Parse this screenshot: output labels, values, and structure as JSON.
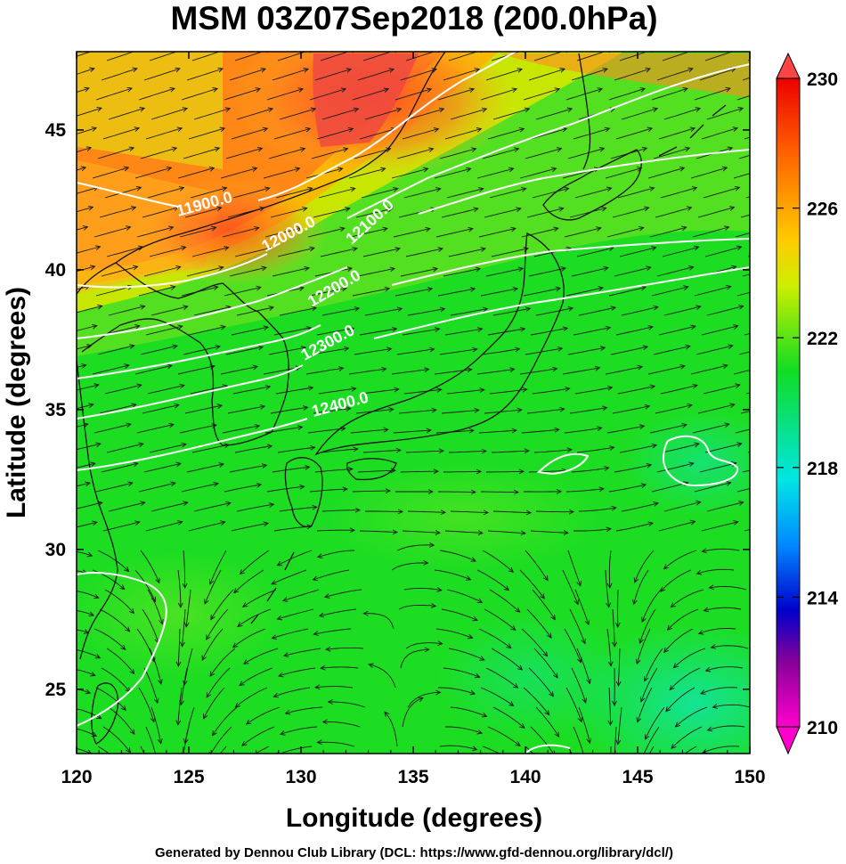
{
  "title": "MSM 03Z07Sep2018 (200.0hPa)",
  "footer": "Generated by Dennou Club Library (DCL: https://www.gfd-dennou.org/library/dcl/)",
  "x_axis": {
    "label": "Longitude (degrees)",
    "ticks": [
      "120",
      "125",
      "130",
      "135",
      "140",
      "145",
      "150"
    ]
  },
  "y_axis": {
    "label": "Latitude  (degrees)",
    "ticks": [
      "25",
      "30",
      "35",
      "40",
      "45"
    ]
  },
  "colorbar": {
    "ticks": [
      "230",
      "226",
      "222",
      "218",
      "214",
      "210"
    ],
    "stops": [
      "#ee0000",
      "#ffcc00",
      "#ccee00",
      "#11dd22",
      "#00e5e5",
      "#0088ff",
      "#0000cc",
      "#880099",
      "#ff00cc"
    ]
  },
  "contour_labels": [
    "11900.0",
    "12000.0",
    "12100.0",
    "12200.0",
    "12300.0",
    "12400.0"
  ],
  "colors": {
    "warm": "#ee3311",
    "mid": "#ccee00",
    "base": "#11dd22",
    "cool": "#00e5b0"
  }
}
